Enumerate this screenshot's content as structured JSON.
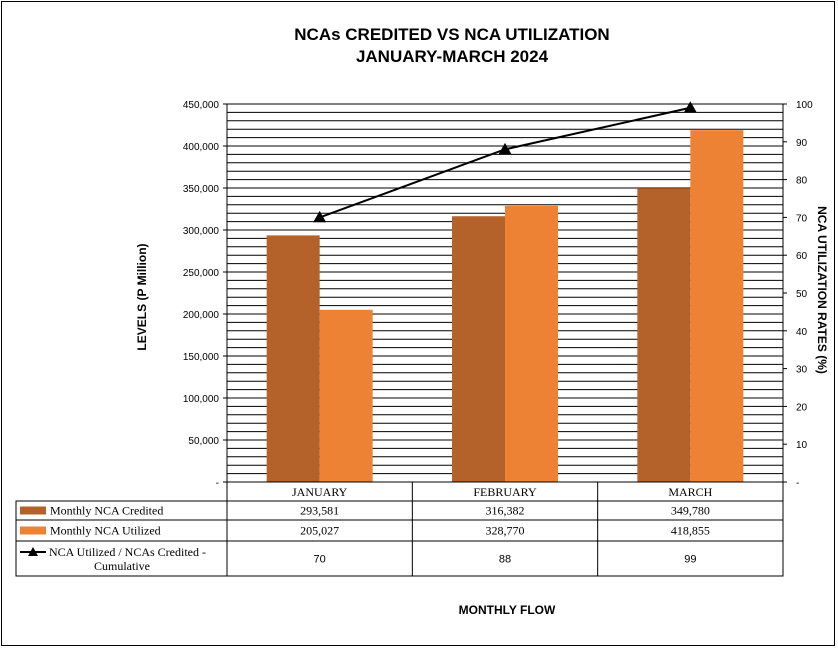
{
  "chart_data": {
    "type": "bar",
    "title": "NCAs CREDITED VS NCA UTILIZATION",
    "subtitle": "JANUARY-MARCH 2024",
    "xlabel": "MONTHLY  FLOW",
    "ylabel": "LEVELS (P Million)",
    "y2label": "NCA UTILIZATION RATES (%)",
    "categories": [
      "JANUARY",
      "FEBRUARY",
      "MARCH"
    ],
    "ylim": [
      0,
      450000
    ],
    "y2lim": [
      0,
      100
    ],
    "yticks": [
      "-",
      "50,000",
      "100,000",
      "150,000",
      "200,000",
      "250,000",
      "300,000",
      "350,000",
      "400,000",
      "450,000"
    ],
    "y2ticks": [
      "-",
      "10",
      "20",
      "30",
      "40",
      "50",
      "60",
      "70",
      "80",
      "90",
      "100"
    ],
    "grid": true,
    "legend_placement": "data-table",
    "series": [
      {
        "name": "Monthly NCA Credited",
        "type": "bar",
        "color": "#B5612A",
        "values": [
          293581,
          316382,
          349780
        ],
        "labels": [
          "293,581",
          "316,382",
          "349,780"
        ]
      },
      {
        "name": "Monthly NCA Utilized",
        "type": "bar",
        "color": "#ED8134",
        "values": [
          205027,
          328770,
          418855
        ],
        "labels": [
          "205,027",
          "328,770",
          "418,855"
        ]
      },
      {
        "name": "NCA Utilized / NCAs Credited - Cumulative",
        "name_lines": [
          "NCA Utilized / NCAs Credited -",
          "Cumulative"
        ],
        "type": "line",
        "axis": "right",
        "color": "#000000",
        "values": [
          70,
          88,
          99
        ],
        "labels": [
          "70",
          "88",
          "99"
        ]
      }
    ]
  }
}
